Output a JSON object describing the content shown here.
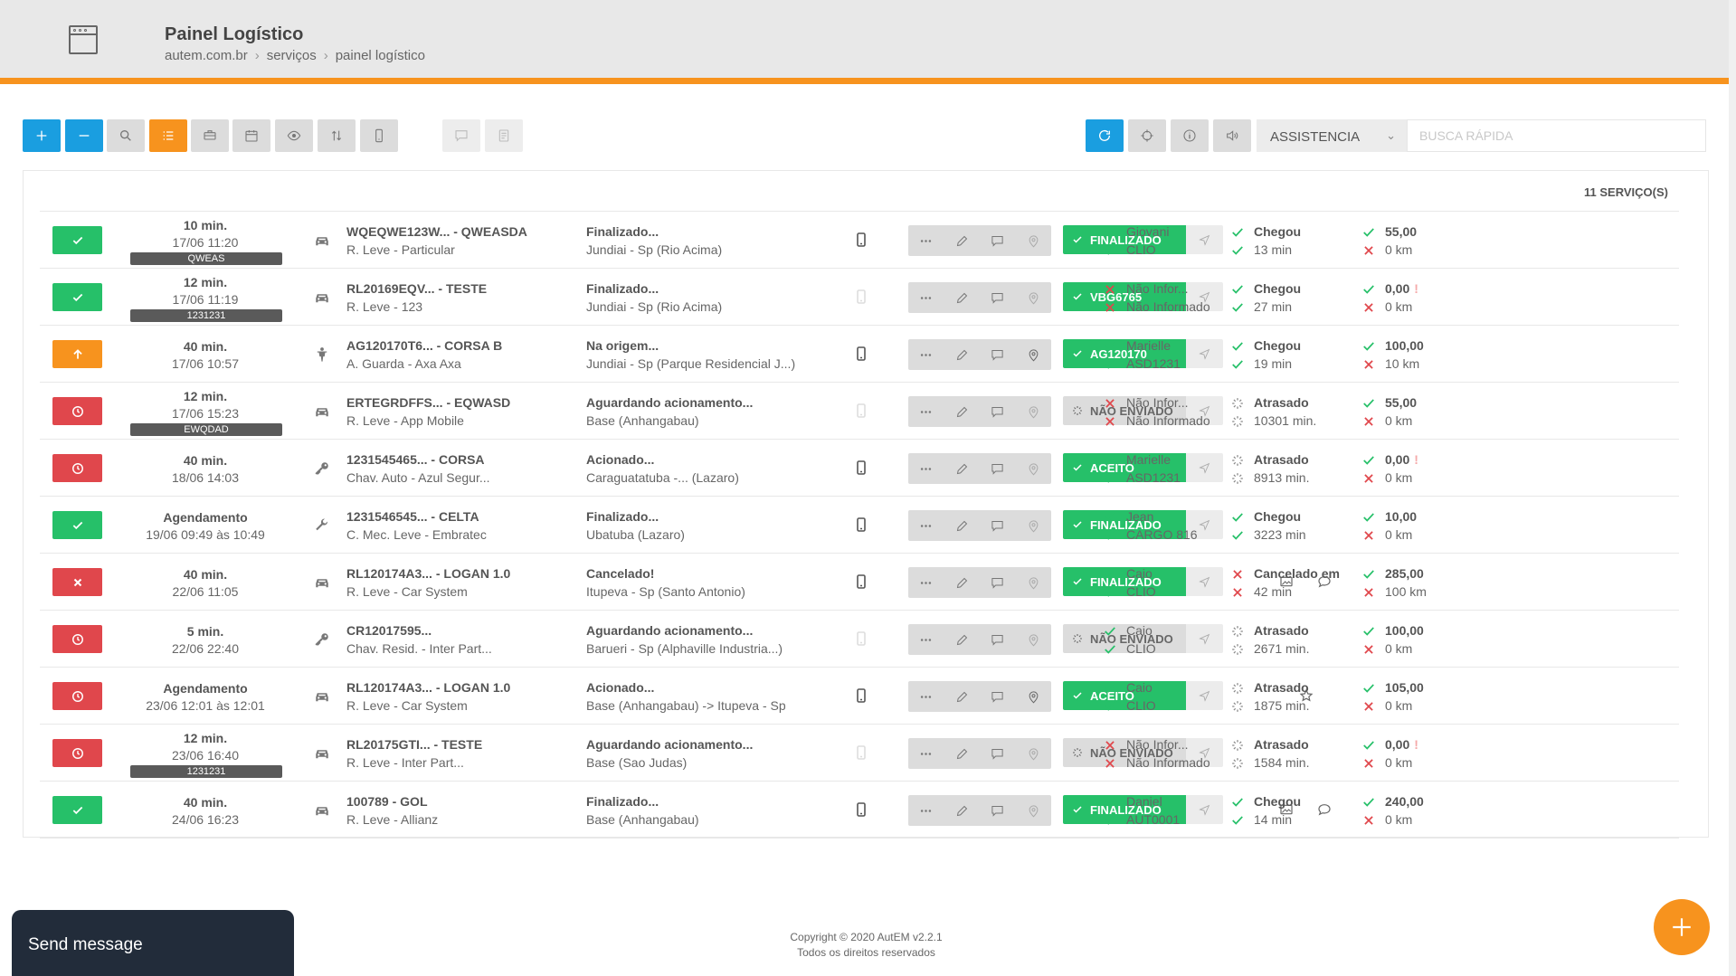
{
  "header": {
    "title": "Painel Logístico",
    "breadcrumb": [
      "autem.com.br",
      "serviços",
      "painel logístico"
    ]
  },
  "toolbar": {
    "left_buttons": [
      {
        "icon": "plus-icon",
        "style": "blue"
      },
      {
        "icon": "minus-icon",
        "style": "blue"
      },
      {
        "icon": "search-icon",
        "style": "gray"
      },
      {
        "icon": "list-icon",
        "style": "orange"
      },
      {
        "icon": "truck-icon",
        "style": "gray"
      },
      {
        "icon": "calendar-icon",
        "style": "gray"
      },
      {
        "icon": "eye-icon",
        "style": "gray"
      },
      {
        "icon": "sort-icon",
        "style": "gray"
      },
      {
        "icon": "mobile-icon",
        "style": "gray"
      },
      {
        "icon": "chat-icon",
        "style": "light"
      },
      {
        "icon": "document-icon",
        "style": "light"
      }
    ],
    "right_buttons": [
      {
        "icon": "refresh-icon",
        "style": "blue"
      },
      {
        "icon": "crosshair-icon",
        "style": "gray"
      },
      {
        "icon": "info-icon",
        "style": "gray"
      },
      {
        "icon": "volume-icon",
        "style": "gray"
      }
    ],
    "select_value": "ASSISTENCIA",
    "search_placeholder": "BUSCA RÁPIDA"
  },
  "service_count": "11 SERVIÇO(S)",
  "rows": [
    {
      "status": "check",
      "status_color": "green",
      "time1": "10 min.",
      "time2": "17/06 11:20",
      "tag": "QWEAS",
      "vehicle": "car",
      "svc1": "WQEQWE123W... - QWEASDA",
      "svc2": "R. Leve - Particular",
      "stat1": "Finalizado...",
      "stat2": "Jundiai - Sp (Rio Acima)",
      "phone": true,
      "pin_active": false,
      "pill": "FINALIZADO",
      "pill_color": "green",
      "extras": [],
      "driver": {
        "name": "Giovani",
        "vehicle": "CLIO",
        "ok": true
      },
      "arrival": {
        "label": "Chegou",
        "time": "13 min",
        "state": "ok"
      },
      "amount": {
        "value": "55,00",
        "km": "0 km",
        "warn": false
      }
    },
    {
      "status": "check",
      "status_color": "green",
      "time1": "12 min.",
      "time2": "17/06 11:19",
      "tag": "1231231",
      "vehicle": "car",
      "svc1": "RL20169EQV... - TESTE",
      "svc2": "R. Leve - 123",
      "stat1": "Finalizado...",
      "stat2": "Jundiai - Sp (Rio Acima)",
      "phone": false,
      "pin_active": false,
      "pill": "VBG6765",
      "pill_color": "green",
      "extras": [],
      "driver": {
        "name": "Não Infor...",
        "vehicle": "Não Informado",
        "ok": false
      },
      "arrival": {
        "label": "Chegou",
        "time": "27 min",
        "state": "ok"
      },
      "amount": {
        "value": "0,00",
        "km": "0 km",
        "warn": true
      }
    },
    {
      "status": "up",
      "status_color": "orange",
      "time1": "40 min.",
      "time2": "17/06 10:57",
      "tag": "",
      "vehicle": "person",
      "svc1": "AG120170T6... - CORSA B",
      "svc2": "A. Guarda - Axa Axa",
      "stat1": "Na origem...",
      "stat2": "Jundiai - Sp (Parque Residencial J...)",
      "phone": true,
      "pin_active": true,
      "pill": "AG120170",
      "pill_color": "green",
      "extras": [],
      "driver": {
        "name": "Marielle",
        "vehicle": "ASD1231",
        "ok": true
      },
      "arrival": {
        "label": "Chegou",
        "time": "19 min",
        "state": "ok"
      },
      "amount": {
        "value": "100,00",
        "km": "10 km",
        "warn": false
      }
    },
    {
      "status": "clock",
      "status_color": "red",
      "time1": "12 min.",
      "time2": "17/06 15:23",
      "tag": "EWQDAD",
      "vehicle": "car",
      "svc1": "ERTEGRDFFS... - EQWASD",
      "svc2": "R. Leve - App Mobile",
      "stat1": "Aguardando acionamento...",
      "stat2": "Base (Anhangabau)",
      "phone": false,
      "pin_active": false,
      "pill": "NÃO ENVIADO",
      "pill_color": "gray",
      "extras": [],
      "driver": {
        "name": "Não Infor...",
        "vehicle": "Não Informado",
        "ok": false
      },
      "arrival": {
        "label": "Atrasado",
        "time": "10301 min.",
        "state": "late"
      },
      "amount": {
        "value": "55,00",
        "km": "0 km",
        "warn": false
      }
    },
    {
      "status": "clock",
      "status_color": "red",
      "time1": "40 min.",
      "time2": "18/06 14:03",
      "tag": "",
      "vehicle": "key",
      "svc1": "1231545465... - CORSA",
      "svc2": "Chav. Auto - Azul Segur...",
      "stat1": "Acionado...",
      "stat2": "Caraguatatuba -... (Lazaro)",
      "phone": true,
      "pin_active": false,
      "pill": "ACEITO",
      "pill_color": "green",
      "extras": [],
      "driver": {
        "name": "Marielle",
        "vehicle": "ASD1231",
        "ok": true
      },
      "arrival": {
        "label": "Atrasado",
        "time": "8913 min.",
        "state": "late"
      },
      "amount": {
        "value": "0,00",
        "km": "0 km",
        "warn": true
      }
    },
    {
      "status": "check",
      "status_color": "green",
      "time1": "Agendamento",
      "time2": "19/06 09:49 às 10:49",
      "tag": "",
      "vehicle": "wrench",
      "svc1": "1231546545... - CELTA",
      "svc2": "C. Mec. Leve - Embratec",
      "stat1": "Finalizado...",
      "stat2": "Ubatuba (Lazaro)",
      "phone": true,
      "pin_active": false,
      "pill": "FINALIZADO",
      "pill_color": "green",
      "extras": [],
      "driver": {
        "name": "Jean",
        "vehicle": "CARGO 816",
        "ok": true
      },
      "arrival": {
        "label": "Chegou",
        "time": "3223 min",
        "state": "ok"
      },
      "amount": {
        "value": "10,00",
        "km": "0 km",
        "warn": false
      }
    },
    {
      "status": "x",
      "status_color": "red",
      "time1": "40 min.",
      "time2": "22/06 11:05",
      "tag": "",
      "vehicle": "car",
      "svc1": "RL120174A3... - LOGAN 1.0",
      "svc2": "R. Leve - Car System",
      "stat1": "Cancelado!",
      "stat2": "Itupeva - Sp (Santo Antonio)",
      "phone": true,
      "pin_active": false,
      "pill": "FINALIZADO",
      "pill_color": "green",
      "extras": [
        "image-icon",
        "comment-icon"
      ],
      "driver": {
        "name": "Caio",
        "vehicle": "CLIO",
        "ok": true
      },
      "arrival": {
        "label": "Cancelado em",
        "time": "42 min",
        "state": "fail"
      },
      "amount": {
        "value": "285,00",
        "km": "100 km",
        "warn": false
      }
    },
    {
      "status": "clock",
      "status_color": "red",
      "time1": "5 min.",
      "time2": "22/06 22:40",
      "tag": "",
      "vehicle": "key",
      "svc1": "CR12017595...",
      "svc2": "Chav. Resid. - Inter Part...",
      "stat1": "Aguardando acionamento...",
      "stat2": "Barueri - Sp (Alphaville Industria...)",
      "phone": false,
      "pin_active": false,
      "pill": "NÃO ENVIADO",
      "pill_color": "gray",
      "extras": [],
      "driver": {
        "name": "Caio",
        "vehicle": "CLIO",
        "ok": true
      },
      "arrival": {
        "label": "Atrasado",
        "time": "2671 min.",
        "state": "late"
      },
      "amount": {
        "value": "100,00",
        "km": "0 km",
        "warn": false
      }
    },
    {
      "status": "clock",
      "status_color": "red",
      "time1": "Agendamento",
      "time2": "23/06 12:01 às 12:01",
      "tag": "",
      "vehicle": "car",
      "svc1": "RL120174A3... - LOGAN 1.0",
      "svc2": "R. Leve - Car System",
      "stat1": "Acionado...",
      "stat2": "Base (Anhangabau) -> Itupeva - Sp",
      "phone": true,
      "pin_active": true,
      "pill": "ACEITO",
      "pill_color": "green",
      "extras": [
        "star-icon"
      ],
      "driver": {
        "name": "Caio",
        "vehicle": "CLIO",
        "ok": true
      },
      "arrival": {
        "label": "Atrasado",
        "time": "1875 min.",
        "state": "late"
      },
      "amount": {
        "value": "105,00",
        "km": "0 km",
        "warn": false
      }
    },
    {
      "status": "clock",
      "status_color": "red",
      "time1": "12 min.",
      "time2": "23/06 16:40",
      "tag": "1231231",
      "vehicle": "car",
      "svc1": "RL20175GTI... - TESTE",
      "svc2": "R. Leve - Inter Part...",
      "stat1": "Aguardando acionamento...",
      "stat2": "Base (Sao Judas)",
      "phone": false,
      "pin_active": false,
      "pill": "NÃO ENVIADO",
      "pill_color": "gray",
      "extras": [],
      "driver": {
        "name": "Não Infor...",
        "vehicle": "Não Informado",
        "ok": false
      },
      "arrival": {
        "label": "Atrasado",
        "time": "1584 min.",
        "state": "late"
      },
      "amount": {
        "value": "0,00",
        "km": "0 km",
        "warn": true
      }
    },
    {
      "status": "check",
      "status_color": "green",
      "time1": "40 min.",
      "time2": "24/06 16:23",
      "tag": "",
      "vehicle": "car",
      "svc1": "100789 - GOL",
      "svc2": "R. Leve - Allianz",
      "stat1": "Finalizado...",
      "stat2": "Base (Anhangabau)",
      "phone": true,
      "pin_active": false,
      "pill": "FINALIZADO",
      "pill_color": "green",
      "extras": [
        "image-icon",
        "comment-icon"
      ],
      "driver": {
        "name": "Daniel",
        "vehicle": "AUT0001",
        "ok": true
      },
      "arrival": {
        "label": "Chegou",
        "time": "14 min",
        "state": "ok"
      },
      "amount": {
        "value": "240,00",
        "km": "0 km",
        "warn": false
      }
    }
  ],
  "colors": {
    "green": "#26c069",
    "orange": "#f7931e",
    "red": "#e0474c",
    "blue": "#1a9ee0"
  },
  "footer": {
    "copyright": "Copyright © 2020 AutEM v2.2.1",
    "rights": "Todos os direitos reservados"
  },
  "chat": {
    "label": "Send message"
  },
  "fab": {
    "icon": "plus-icon"
  }
}
